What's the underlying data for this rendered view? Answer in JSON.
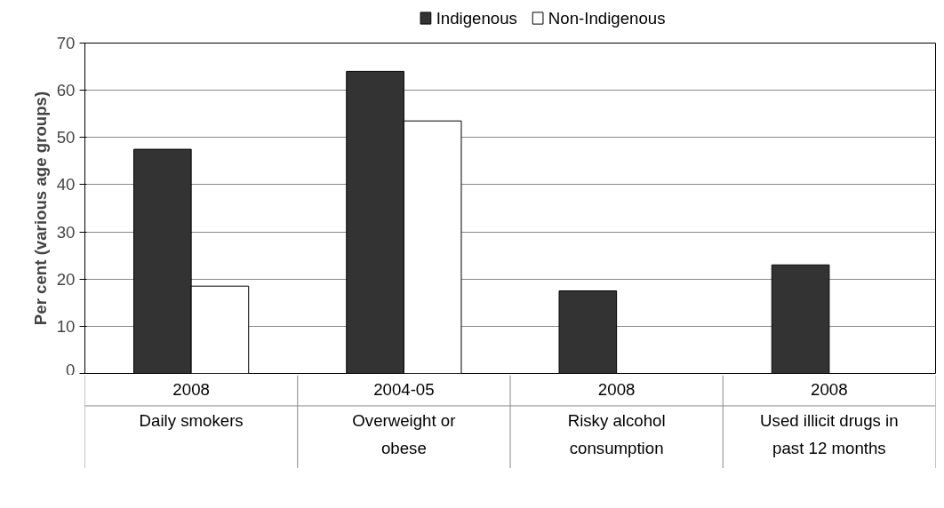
{
  "chart_data": {
    "type": "bar",
    "ylabel": "Per cent (various age groups)",
    "categories": [
      "2008\nDaily smokers",
      "2004-05\nOverweight or\nobese",
      "2008\nRisky alcohol\nconsumption",
      "2008\nUsed illicit drugs in\npast 12 months"
    ],
    "series": [
      {
        "name": "Indigenous",
        "color": "#333333",
        "values": [
          47.5,
          64,
          17.5,
          23
        ]
      },
      {
        "name": "Non-Indigenous",
        "color": "#ffffff",
        "values": [
          18.5,
          53.5,
          null,
          null
        ]
      }
    ],
    "ylim": [
      0,
      70
    ],
    "yticks": [
      0,
      10,
      20,
      30,
      40,
      50,
      60,
      70
    ],
    "grid": "y",
    "legend": "top"
  }
}
